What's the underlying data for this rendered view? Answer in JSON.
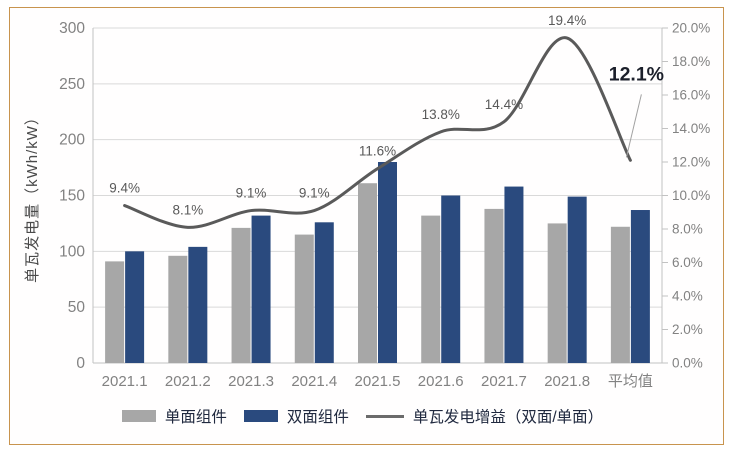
{
  "chart_data": {
    "type": "bar",
    "subtype": "combo-bar-line",
    "categories": [
      "2021.1",
      "2021.2",
      "2021.3",
      "2021.4",
      "2021.5",
      "2021.6",
      "2021.7",
      "2021.8",
      "平均值"
    ],
    "series": [
      {
        "name": "单面组件",
        "type": "bar",
        "axis": "left",
        "color": "#A7A7A7",
        "values": [
          91,
          96,
          121,
          115,
          161,
          132,
          138,
          125,
          122
        ]
      },
      {
        "name": "双面组件",
        "type": "bar",
        "axis": "left",
        "color": "#2A4A7E",
        "values": [
          100,
          104,
          132,
          126,
          180,
          150,
          158,
          149,
          137
        ]
      },
      {
        "name": "单瓦发电增益（双面/单面）",
        "type": "line",
        "axis": "right",
        "color": "#5A5A5A",
        "values": [
          9.4,
          8.1,
          9.1,
          9.1,
          11.6,
          13.8,
          14.4,
          19.4,
          12.1
        ],
        "labels": [
          "9.4%",
          "8.1%",
          "9.1%",
          "9.1%",
          "11.6%",
          "13.8%",
          "14.4%",
          "19.4%",
          "12.1%"
        ]
      }
    ],
    "left_axis": {
      "title": "单瓦发电量（kWh/kW）",
      "min": 0,
      "max": 300,
      "ticks": [
        "300",
        "250",
        "200",
        "150",
        "100",
        "50",
        "0"
      ]
    },
    "right_axis": {
      "min": 0,
      "max": 20,
      "ticks": [
        "20.0%",
        "18.0%",
        "16.0%",
        "14.0%",
        "12.0%",
        "10.0%",
        "8.0%",
        "6.0%",
        "4.0%",
        "2.0%",
        "0.0%"
      ]
    },
    "highlight": {
      "index": 8,
      "label": "12.1%"
    },
    "legend": [
      "单面组件",
      "双面组件",
      "单瓦发电增益（双面/单面）"
    ],
    "grid": "horizontal-only",
    "legend_position": "bottom",
    "colors": {
      "bar_mono": "#A7A7A7",
      "bar_bifacial": "#2A4A7E",
      "gain_line": "#5A5A5A",
      "gridline": "#D9D9D9",
      "axis_line": "#C2C2C2",
      "tick_text": "#828282",
      "data_label_text": "#595959",
      "highlight_text": "#1B1F2A",
      "legend_text": "#20293F",
      "frame_border": "#C8944E"
    }
  }
}
